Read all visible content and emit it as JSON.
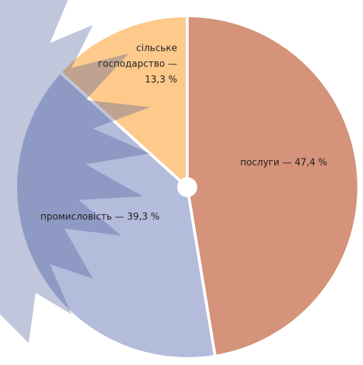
{
  "chart_data": {
    "type": "pie",
    "values": [
      47.4,
      39.3,
      13.3
    ],
    "value_labels": [
      [
        "послуги — 47,4 %"
      ],
      [
        "промисловість — 39,3 %"
      ],
      [
        "сільське",
        "господарство —",
        "13,3 %"
      ]
    ],
    "colors": [
      "#d4937a",
      "#b4bcdc",
      "#fdca8c"
    ]
  }
}
